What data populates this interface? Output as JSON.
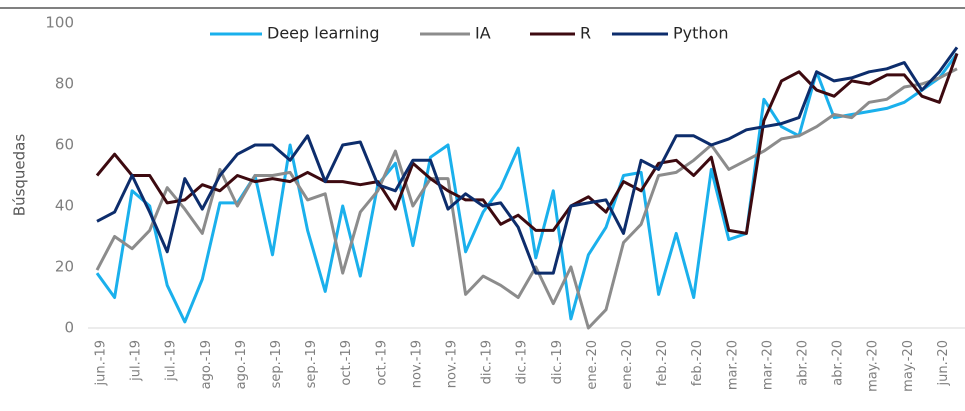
{
  "chart_data": {
    "type": "line",
    "y_label": "Búsquedas",
    "categories": [
      "jun.-19",
      null,
      "jul.-19",
      null,
      "jul.-19",
      null,
      "ago.-19",
      null,
      "ago.-19",
      null,
      "sep.-19",
      null,
      "sep.-19",
      null,
      "oct.-19",
      null,
      "oct.-19",
      null,
      "nov.-19",
      null,
      "nov.-19",
      null,
      "dic.-19",
      null,
      "dic.-19",
      null,
      "dic.-19",
      null,
      "ene.-20",
      null,
      "ene.-20",
      null,
      "feb.-20",
      null,
      "feb.-20",
      null,
      "mar.-20",
      null,
      "mar.-20",
      null,
      "abr.-20",
      null,
      "abr.-20",
      null,
      "may.-20",
      null,
      "may.-20",
      null,
      "jun.-20",
      null
    ],
    "series": [
      {
        "name": "Deep learning",
        "color": "#1ab0ec",
        "values": [
          18,
          10,
          45,
          40,
          14,
          2,
          16,
          41,
          41,
          50,
          24,
          60,
          32,
          12,
          40,
          17,
          47,
          54,
          27,
          56,
          60,
          25,
          38,
          46,
          59,
          23,
          45,
          3,
          24,
          33,
          50,
          51,
          11,
          31,
          10,
          52,
          29,
          31,
          75,
          66,
          63,
          84,
          69,
          70,
          71,
          72,
          74,
          78,
          82,
          90
        ]
      },
      {
        "name": "IA",
        "color": "#8c8c8c",
        "values": [
          19,
          30,
          26,
          32,
          46,
          39,
          31,
          52,
          40,
          50,
          50,
          51,
          42,
          44,
          18,
          38,
          45,
          58,
          40,
          49,
          49,
          11,
          17,
          14,
          10,
          20,
          8,
          20,
          0,
          6,
          28,
          34,
          50,
          51,
          55,
          60,
          52,
          55,
          58,
          62,
          63,
          66,
          70,
          69,
          74,
          75,
          79,
          80,
          82,
          85
        ]
      },
      {
        "name": "R",
        "color": "#3d0a10",
        "values": [
          50,
          57,
          50,
          50,
          41,
          42,
          47,
          45,
          50,
          48,
          49,
          48,
          51,
          48,
          48,
          47,
          48,
          39,
          54,
          49,
          45,
          42,
          42,
          34,
          37,
          32,
          32,
          40,
          43,
          38,
          48,
          45,
          54,
          55,
          50,
          56,
          32,
          31,
          68,
          81,
          84,
          78,
          76,
          81,
          80,
          83,
          83,
          76,
          74,
          90
        ]
      },
      {
        "name": "Python",
        "color": "#0d2d6c",
        "values": [
          35,
          38,
          50,
          38,
          25,
          49,
          39,
          50,
          57,
          60,
          60,
          55,
          63,
          48,
          60,
          61,
          47,
          45,
          55,
          55,
          39,
          44,
          40,
          41,
          33,
          18,
          18,
          40,
          41,
          42,
          31,
          55,
          52,
          63,
          63,
          60,
          62,
          65,
          66,
          67,
          69,
          84,
          81,
          82,
          84,
          85,
          87,
          78,
          84,
          92
        ]
      }
    ],
    "ylim": [
      0,
      100
    ],
    "yticks": [
      0,
      20,
      40,
      60,
      80,
      100
    ],
    "grid": false
  }
}
